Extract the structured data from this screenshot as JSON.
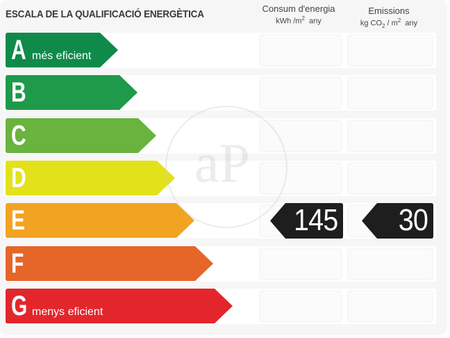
{
  "header": {
    "title": "ESCALA DE LA QUALIFICACIÓ ENERGÈTICA",
    "consum_label": "Consum d'energia",
    "consum_unit_prefix": "kWh /m",
    "consum_unit_exp": "2",
    "consum_unit_suffix": "any",
    "emissions_label": "Emissions",
    "emissions_unit_prefix": "kg CO",
    "emissions_unit_sub": "2",
    "emissions_unit_mid": "/ m",
    "emissions_unit_exp": "2",
    "emissions_unit_suffix": "any"
  },
  "classes": [
    {
      "letter": "A",
      "label": "més eficient",
      "color": "#0f8a4a"
    },
    {
      "letter": "B",
      "label": "",
      "color": "#1e9a4a"
    },
    {
      "letter": "C",
      "label": "",
      "color": "#6ab33e"
    },
    {
      "letter": "D",
      "label": "",
      "color": "#e3e21a"
    },
    {
      "letter": "E",
      "label": "",
      "color": "#f2a322"
    },
    {
      "letter": "F",
      "label": "",
      "color": "#e6662a"
    },
    {
      "letter": "G",
      "label": "menys eficient",
      "color": "#e3262c"
    }
  ],
  "rating": {
    "class": "E",
    "consum_value": "145",
    "emissions_value": "30",
    "tag_color": "#1e1e1e"
  },
  "watermark": {
    "text": "aP"
  }
}
